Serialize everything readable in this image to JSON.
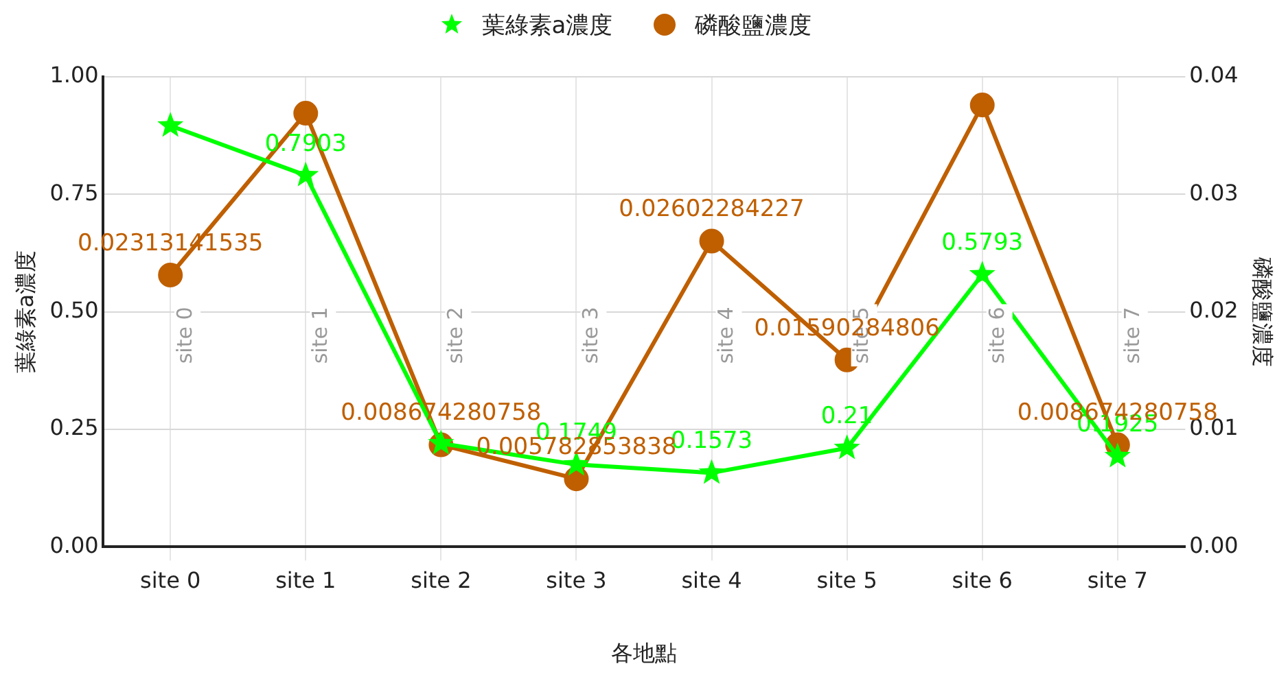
{
  "chart_data": {
    "type": "line",
    "xlabel": "各地點",
    "ylabel": "葉綠素a濃度",
    "y2label": "磷酸鹽濃度",
    "categories": [
      "site 0",
      "site 1",
      "site 2",
      "site 3",
      "site 4",
      "site 5",
      "site 6",
      "site 7"
    ],
    "series": [
      {
        "name": "葉綠素a濃度",
        "color": "#00ff00",
        "marker": "star",
        "values": [
          0.896,
          0.7903,
          0.22,
          0.1749,
          0.1573,
          0.21,
          0.5793,
          0.1925
        ],
        "value_labels": [
          null,
          "0.7903",
          null,
          "0.1749",
          "0.1573",
          "0.21",
          "0.5793",
          "0.1925"
        ]
      },
      {
        "name": "磷酸鹽濃度",
        "color": "#bf5f00",
        "marker": "circle",
        "axis": "y2",
        "values": [
          0.02313141535,
          0.0369,
          0.008674280758,
          0.005782853838,
          0.02602284227,
          0.01590284806,
          0.0376,
          0.008674280758
        ],
        "value_labels": [
          "0.02313141535",
          null,
          "0.008674280758",
          "0.005782853838",
          "0.02602284227",
          "0.01590284806",
          null,
          "0.008674280758"
        ]
      }
    ],
    "ylim": [
      0,
      1
    ],
    "yticks": [
      {
        "value": 0,
        "label": "0.00"
      },
      {
        "value": 0.25,
        "label": "0.25"
      },
      {
        "value": 0.5,
        "label": "0.50"
      },
      {
        "value": 0.75,
        "label": "0.75"
      },
      {
        "value": 1,
        "label": "1.00"
      }
    ],
    "y2lim": [
      0,
      0.04
    ],
    "y2ticks": [
      {
        "value": 0,
        "label": "0.00"
      },
      {
        "value": 0.01,
        "label": "0.01"
      },
      {
        "value": 0.02,
        "label": "0.02"
      },
      {
        "value": 0.03,
        "label": "0.03"
      },
      {
        "value": 0.04,
        "label": "0.04"
      }
    ],
    "annotations": [
      "site 0",
      "site 1",
      "site 2",
      "site 3",
      "site 4",
      "site 5",
      "site 6",
      "site 7"
    ],
    "grid": true,
    "legend": "top",
    "line_style": "solid"
  }
}
